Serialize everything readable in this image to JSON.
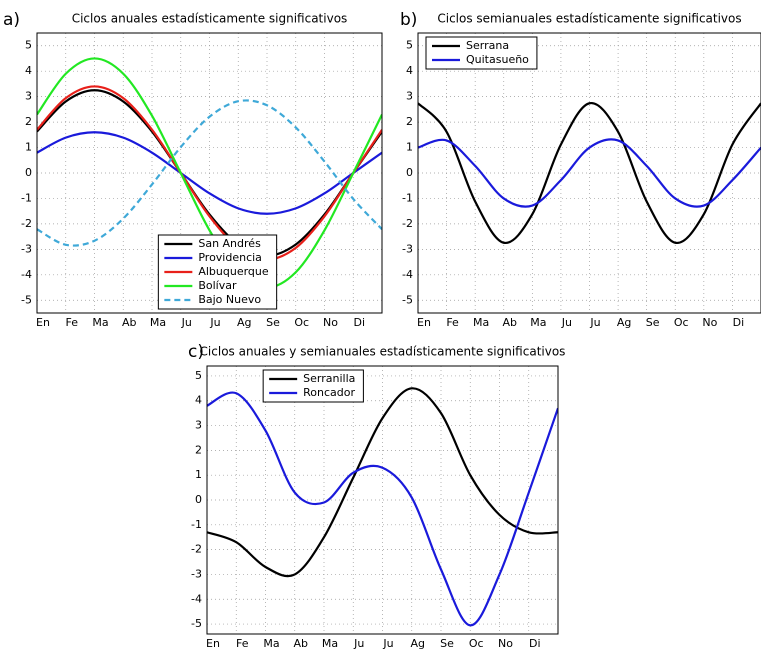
{
  "chart_data": [
    {
      "type": "line",
      "label": "a)",
      "title": "Ciclos anuales estadísticamente significativos",
      "x": [
        0,
        1,
        2,
        3,
        4,
        5,
        6,
        7,
        8,
        9,
        10,
        11,
        12
      ],
      "xlim": [
        0,
        12
      ],
      "xticks": [
        {
          "value": 0,
          "label": "En"
        },
        {
          "value": 1,
          "label": "Fe"
        },
        {
          "value": 2,
          "label": "Ma"
        },
        {
          "value": 3,
          "label": "Ab"
        },
        {
          "value": 4,
          "label": "Ma"
        },
        {
          "value": 5,
          "label": "Ju"
        },
        {
          "value": 6,
          "label": "Ju"
        },
        {
          "value": 7,
          "label": "Ag"
        },
        {
          "value": 8,
          "label": "Se"
        },
        {
          "value": 9,
          "label": "Oc"
        },
        {
          "value": 10,
          "label": "No"
        },
        {
          "value": 11,
          "label": "Di"
        }
      ],
      "ylim": [
        -5.5,
        5.5
      ],
      "yticks": [
        -5,
        -4,
        -3,
        -2,
        -1,
        0,
        1,
        2,
        3,
        4,
        5
      ],
      "grid": true,
      "legend": "lower center",
      "series": [
        {
          "name": "San Andrés",
          "color": "#000000",
          "values": [
            1.63,
            2.81,
            3.25,
            2.81,
            1.63,
            0,
            -1.63,
            -2.81,
            -3.25,
            -2.81,
            -1.63,
            0,
            1.63
          ]
        },
        {
          "name": "Providencia",
          "color": "#1a1adb",
          "values": [
            0.8,
            1.39,
            1.6,
            1.39,
            0.8,
            0,
            -0.8,
            -1.39,
            -1.6,
            -1.39,
            -0.8,
            0,
            0.8
          ]
        },
        {
          "name": "Albuquerque",
          "color": "#e8201a",
          "values": [
            1.7,
            2.94,
            3.4,
            2.94,
            1.7,
            0,
            -1.7,
            -2.94,
            -3.4,
            -2.94,
            -1.7,
            0,
            1.7
          ]
        },
        {
          "name": "Bolívar",
          "color": "#22e822",
          "values": [
            2.3,
            3.9,
            4.5,
            3.9,
            2.25,
            0,
            -2.25,
            -3.9,
            -4.5,
            -3.9,
            -2.25,
            0,
            2.3
          ]
        },
        {
          "name": "Bajo Nuevo",
          "color": "#3fa9d8",
          "dashed": true,
          "values": [
            -2.21,
            -2.82,
            -2.66,
            -1.79,
            -0.45,
            1.02,
            2.21,
            2.82,
            2.66,
            1.79,
            0.45,
            -1.02,
            -2.21
          ]
        }
      ]
    },
    {
      "type": "line",
      "label": "b)",
      "title": "Ciclos semianuales estadísticamente significativos",
      "x": [
        0,
        1,
        2,
        3,
        4,
        5,
        6,
        7,
        8,
        9,
        10,
        11,
        12
      ],
      "xlim": [
        0,
        12
      ],
      "xticks": [
        {
          "value": 0,
          "label": "En"
        },
        {
          "value": 1,
          "label": "Fe"
        },
        {
          "value": 2,
          "label": "Ma"
        },
        {
          "value": 3,
          "label": "Ab"
        },
        {
          "value": 4,
          "label": "Ma"
        },
        {
          "value": 5,
          "label": "Ju"
        },
        {
          "value": 6,
          "label": "Ju"
        },
        {
          "value": 7,
          "label": "Ag"
        },
        {
          "value": 8,
          "label": "Se"
        },
        {
          "value": 9,
          "label": "Oc"
        },
        {
          "value": 10,
          "label": "No"
        },
        {
          "value": 11,
          "label": "Di"
        }
      ],
      "ylim": [
        -5.5,
        5.5
      ],
      "yticks": [
        -5,
        -4,
        -3,
        -2,
        -1,
        0,
        1,
        2,
        3,
        4,
        5
      ],
      "grid": true,
      "legend": "upper left",
      "series": [
        {
          "name": "Serrana",
          "color": "#000000",
          "values": [
            2.74,
            1.62,
            -1.12,
            -2.74,
            -1.62,
            1.12,
            2.74,
            1.62,
            -1.12,
            -2.74,
            -1.62,
            1.12,
            2.74
          ]
        },
        {
          "name": "Quitasueño",
          "color": "#1a1adb",
          "values": [
            1.0,
            1.28,
            0.28,
            -1.0,
            -1.28,
            -0.28,
            1.0,
            1.28,
            0.28,
            -1.0,
            -1.28,
            -0.28,
            1.0
          ]
        }
      ]
    },
    {
      "type": "line",
      "label": "c)",
      "title": "Ciclos anuales y semianuales estadísticamente significativos",
      "x": [
        0,
        1,
        2,
        3,
        4,
        5,
        6,
        7,
        8,
        9,
        10,
        11,
        12
      ],
      "xlim": [
        0,
        12
      ],
      "xticks": [
        {
          "value": 0,
          "label": "En"
        },
        {
          "value": 1,
          "label": "Fe"
        },
        {
          "value": 2,
          "label": "Ma"
        },
        {
          "value": 3,
          "label": "Ab"
        },
        {
          "value": 4,
          "label": "Ma"
        },
        {
          "value": 5,
          "label": "Ju"
        },
        {
          "value": 6,
          "label": "Ju"
        },
        {
          "value": 7,
          "label": "Ag"
        },
        {
          "value": 8,
          "label": "Se"
        },
        {
          "value": 9,
          "label": "Oc"
        },
        {
          "value": 10,
          "label": "No"
        },
        {
          "value": 11,
          "label": "Di"
        }
      ],
      "ylim": [
        -5.4,
        5.4
      ],
      "yticks": [
        -5,
        -4,
        -3,
        -2,
        -1,
        0,
        1,
        2,
        3,
        4,
        5
      ],
      "grid": true,
      "legend": "upper center",
      "series": [
        {
          "name": "Serranilla",
          "color": "#000000",
          "values": [
            -1.3,
            -1.7,
            -2.7,
            -3.0,
            -1.5,
            0.9,
            3.3,
            4.5,
            3.5,
            1.0,
            -0.6,
            -1.3,
            -1.3
          ]
        },
        {
          "name": "Roncador",
          "color": "#1a1adb",
          "values": [
            3.8,
            4.3,
            2.8,
            0.3,
            -0.1,
            1.1,
            1.3,
            0.1,
            -2.8,
            -5.05,
            -3.0,
            0.3,
            3.7
          ]
        }
      ]
    }
  ]
}
